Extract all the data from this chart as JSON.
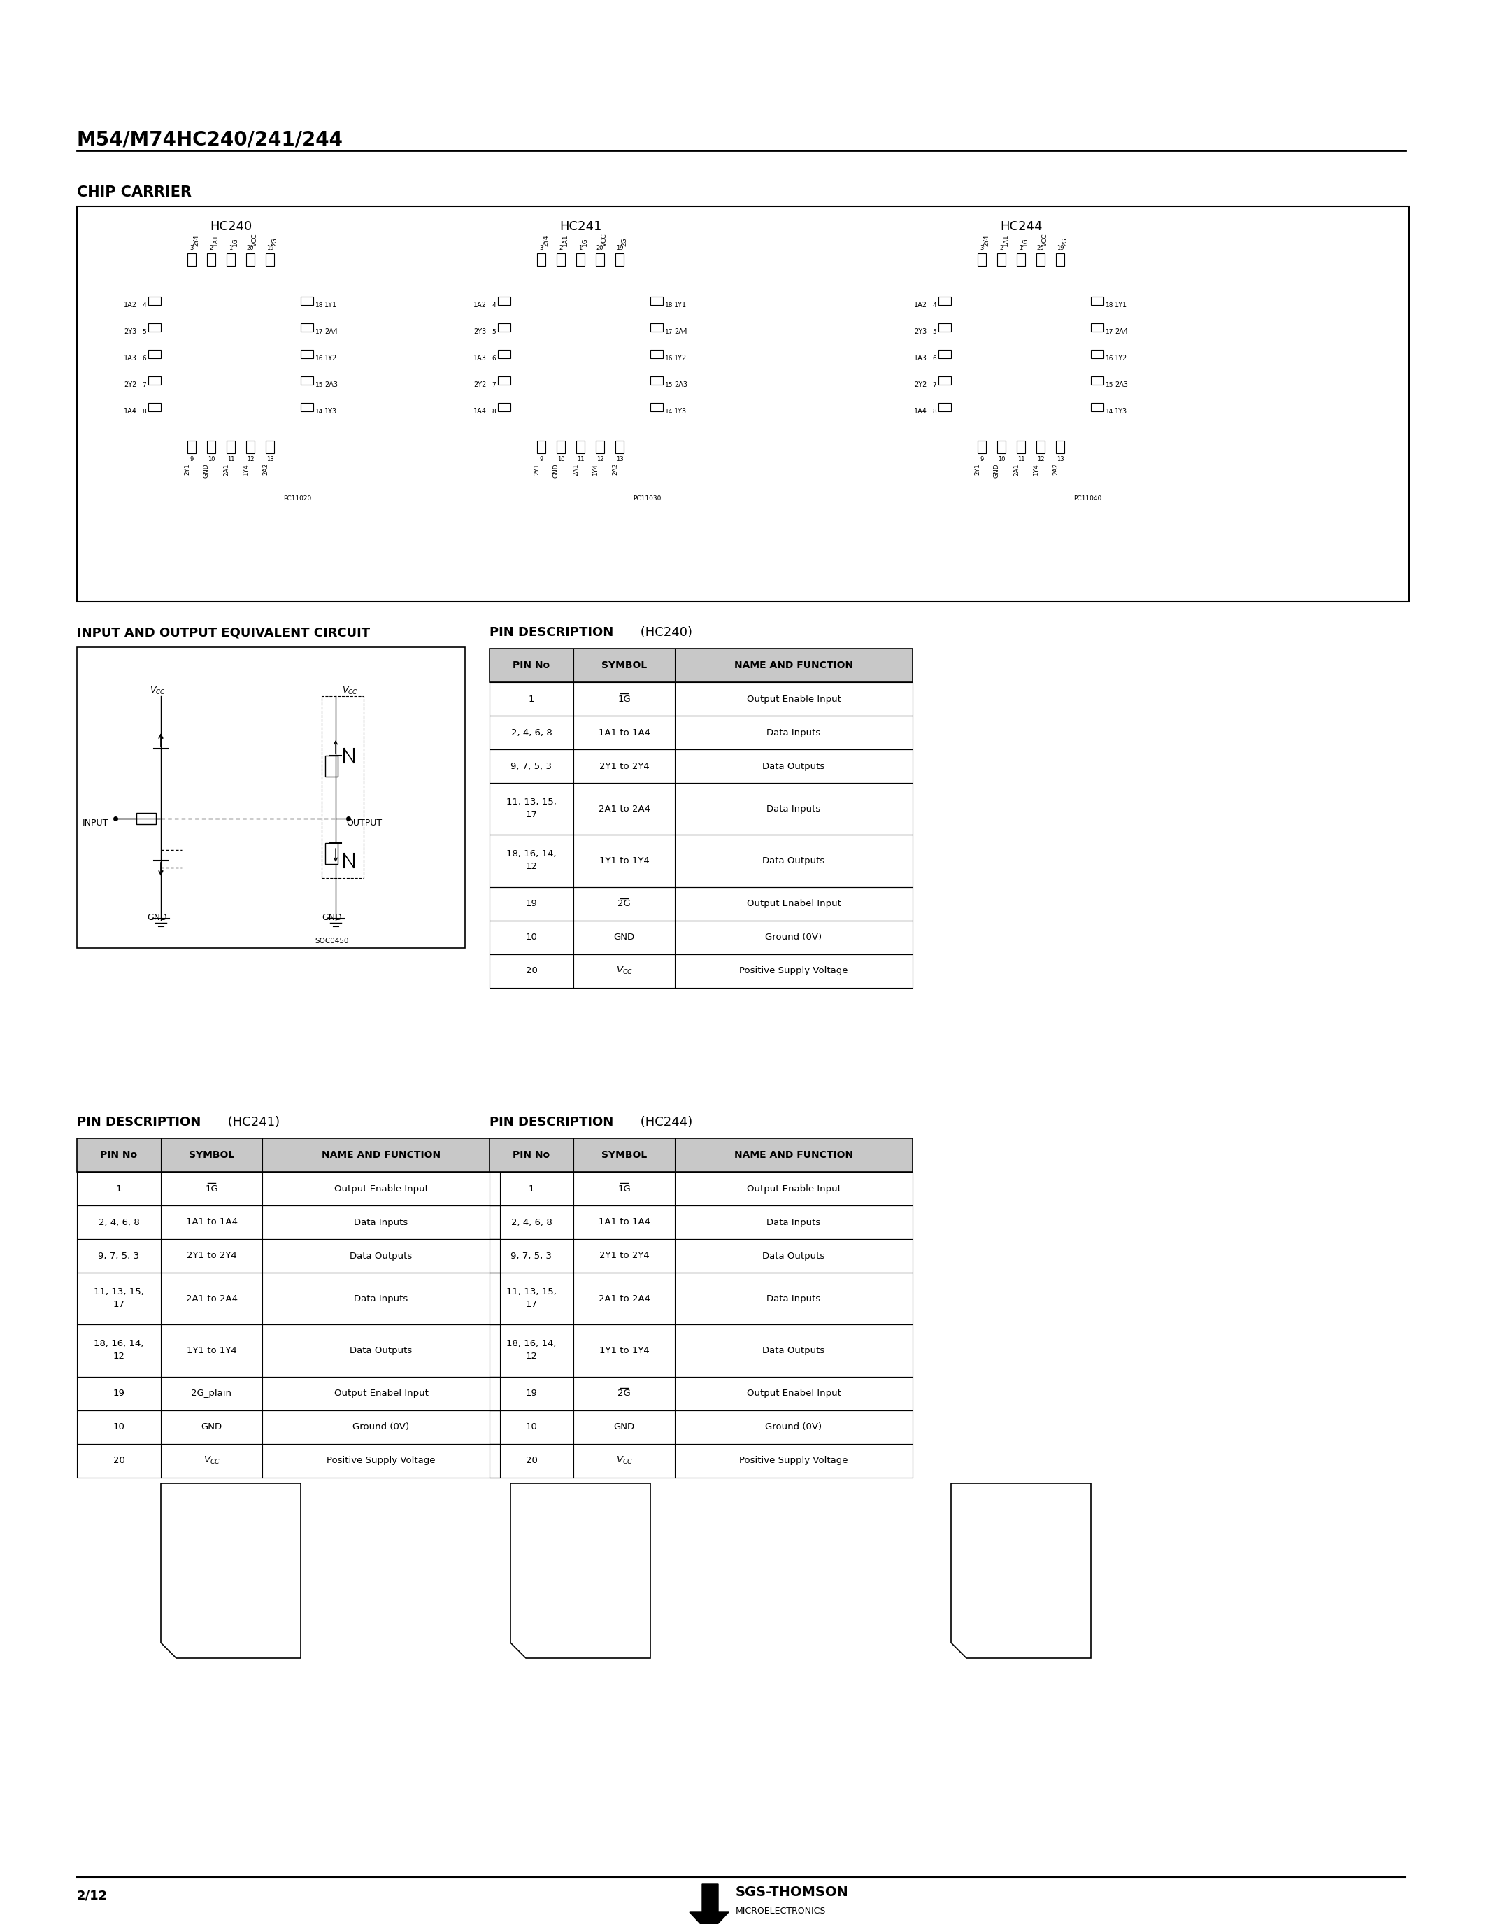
{
  "title": "M54/M74HC240/241/244",
  "page_num": "2/12",
  "bg_color": "#ffffff",
  "chip_carrier_title": "CHIP CARRIER",
  "hc240_label": "HC240",
  "hc241_label": "HC241",
  "hc244_label": "HC244",
  "circuit_title": "INPUT AND OUTPUT EQUIVALENT CIRCUIT",
  "table_headers": [
    "PIN No",
    "SYMBOL",
    "NAME AND FUNCTION"
  ],
  "table_hc240": [
    [
      "1",
      "1G",
      "Output Enable Input"
    ],
    [
      "2, 4, 6, 8",
      "1A1 to 1A4",
      "Data Inputs"
    ],
    [
      "9, 7, 5, 3",
      "2Y1 to 2Y4",
      "Data Outputs"
    ],
    [
      "11, 13, 15,\n17",
      "2A1 to 2A4",
      "Data Inputs"
    ],
    [
      "18, 16, 14,\n12",
      "1Y1 to 1Y4",
      "Data Outputs"
    ],
    [
      "19",
      "2G",
      "Output Enabel Input"
    ],
    [
      "10",
      "GND",
      "Ground (0V)"
    ],
    [
      "20",
      "VCC",
      "Positive Supply Voltage"
    ]
  ],
  "table_hc241": [
    [
      "1",
      "1G",
      "Output Enable Input"
    ],
    [
      "2, 4, 6, 8",
      "1A1 to 1A4",
      "Data Inputs"
    ],
    [
      "9, 7, 5, 3",
      "2Y1 to 2Y4",
      "Data Outputs"
    ],
    [
      "11, 13, 15,\n17",
      "2A1 to 2A4",
      "Data Inputs"
    ],
    [
      "18, 16, 14,\n12",
      "1Y1 to 1Y4",
      "Data Outputs"
    ],
    [
      "19",
      "2G_plain",
      "Output Enabel Input"
    ],
    [
      "10",
      "GND",
      "Ground (0V)"
    ],
    [
      "20",
      "VCC",
      "Positive Supply Voltage"
    ]
  ],
  "table_hc244": [
    [
      "1",
      "1G",
      "Output Enable Input"
    ],
    [
      "2, 4, 6, 8",
      "1A1 to 1A4",
      "Data Inputs"
    ],
    [
      "9, 7, 5, 3",
      "2Y1 to 2Y4",
      "Data Outputs"
    ],
    [
      "11, 13, 15,\n17",
      "2A1 to 2A4",
      "Data Inputs"
    ],
    [
      "18, 16, 14,\n12",
      "1Y1 to 1Y4",
      "Data Outputs"
    ],
    [
      "19",
      "2G",
      "Output Enabel Input"
    ],
    [
      "10",
      "GND",
      "Ground (0V)"
    ],
    [
      "20",
      "VCC",
      "Positive Supply Voltage"
    ]
  ],
  "overline_rows_240": [
    0,
    5
  ],
  "overline_rows_241": [
    0
  ],
  "overline_rows_244": [
    0,
    5
  ],
  "pc_labels": [
    "PC11020",
    "PC11030",
    "PC11040"
  ],
  "chip_left_labels": [
    "1A2",
    "2Y3",
    "1A3",
    "2Y2",
    "1A4"
  ],
  "chip_left_pins": [
    "4",
    "5",
    "6",
    "7",
    "8"
  ],
  "chip_right_labels_240": [
    "1Y1",
    "2A4",
    "1Y2",
    "2A3",
    "1Y3"
  ],
  "chip_right_pins": [
    "18",
    "17",
    "16",
    "15",
    "14"
  ],
  "chip_top_pins": [
    "3",
    "2",
    "1",
    "20",
    "19"
  ],
  "chip_top_labels_240": [
    "2Y4",
    "1A1",
    "1G",
    "VCC",
    "2G"
  ],
  "chip_bot_pins": [
    "9",
    "10",
    "11",
    "12",
    "13"
  ],
  "chip_bot_labels_240": [
    "2Y1",
    "GND",
    "2A1",
    "1Y4",
    "2A2"
  ],
  "soc_label": "SOC0450"
}
